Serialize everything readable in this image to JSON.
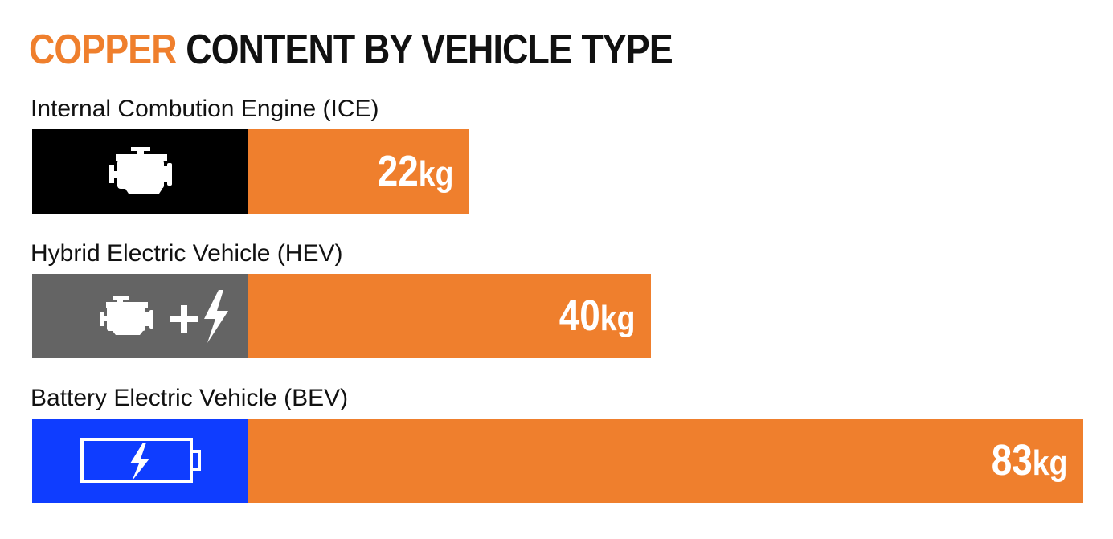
{
  "title": {
    "highlight": "COPPER",
    "rest": " CONTENT BY VEHICLE TYPE"
  },
  "colors": {
    "accent": "#EF7F2D",
    "ice": "#000000",
    "hev": "#646464",
    "bev": "#0F3DFF",
    "text": "#111111"
  },
  "chart_data": {
    "type": "bar",
    "orientation": "horizontal",
    "title": "COPPER CONTENT BY VEHICLE TYPE",
    "unit": "kg",
    "categories": [
      "Internal Combution Engine (ICE)",
      "Hybrid Electric Vehicle (HEV)",
      "Battery Electric Vehicle (BEV)"
    ],
    "values": [
      22,
      40,
      83
    ],
    "icons": [
      "engine-icon",
      "engine-plus-lightning-icon",
      "battery-lightning-icon"
    ],
    "labels": [
      "22",
      "40",
      "83"
    ]
  }
}
